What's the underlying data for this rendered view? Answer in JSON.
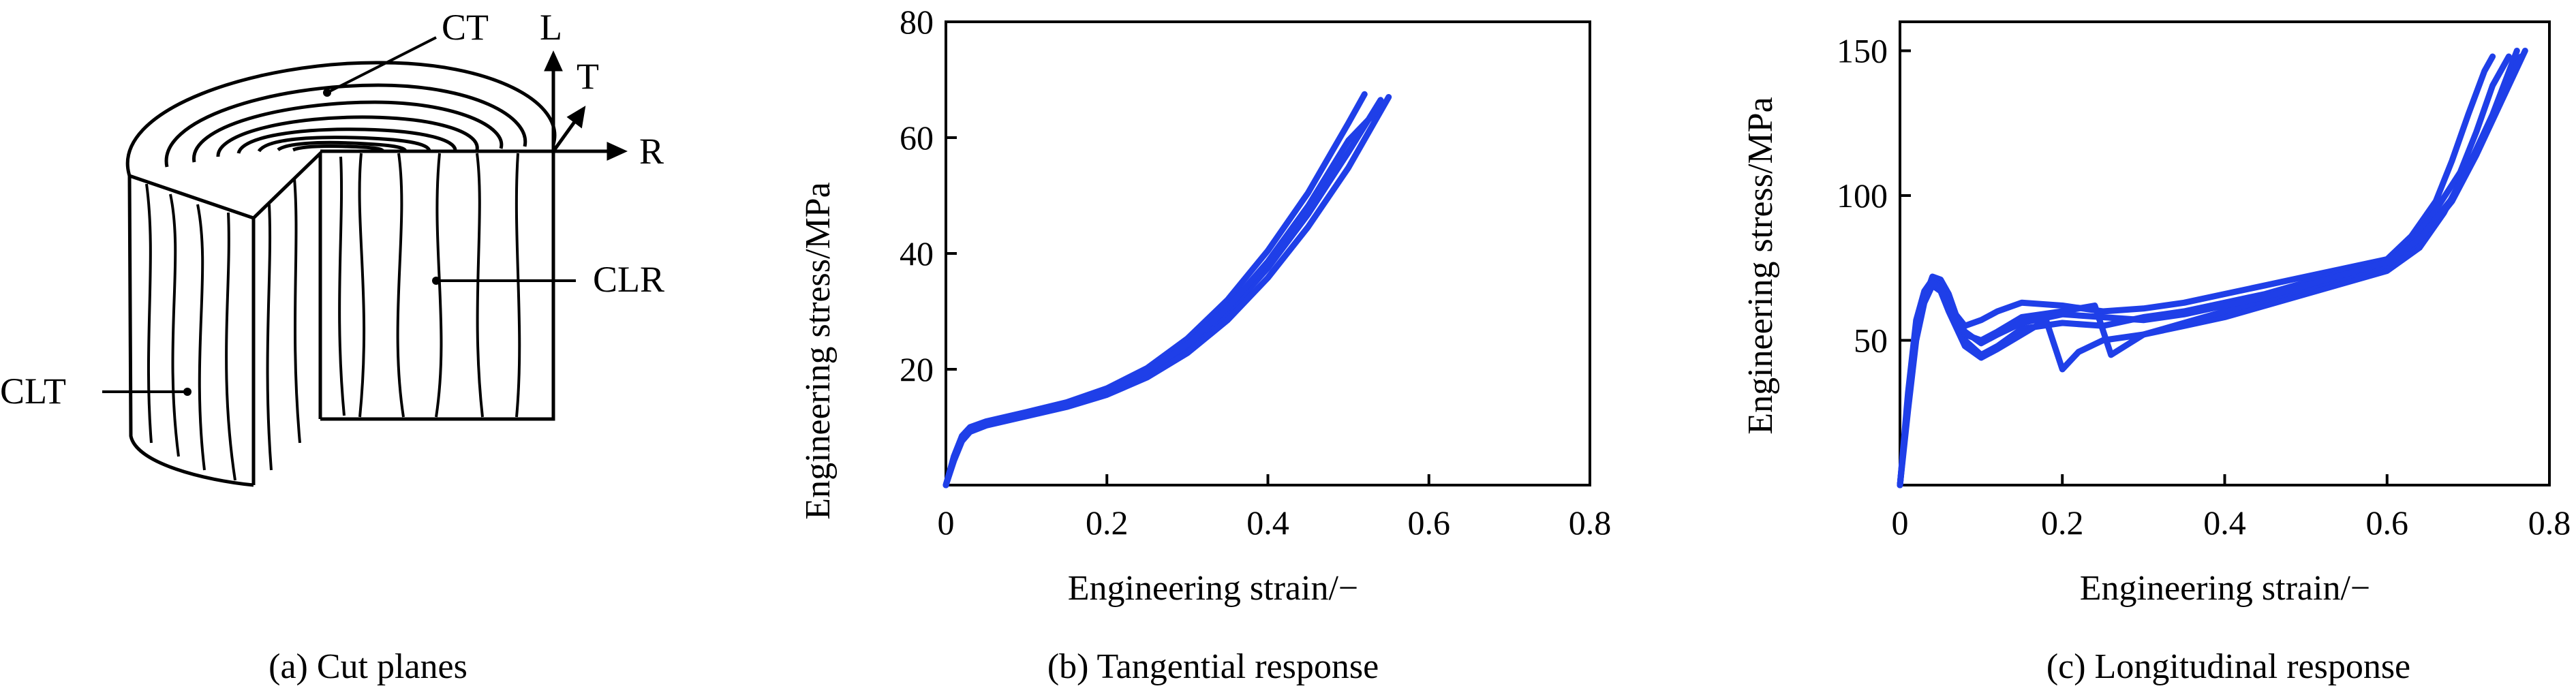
{
  "figure": {
    "panel_a": {
      "caption": "(a) Cut planes",
      "labels": {
        "ct": "CT",
        "clr": "CLR",
        "clt": "CLT",
        "axis_l": "L",
        "axis_t": "T",
        "axis_r": "R"
      }
    },
    "panel_b": {
      "caption": "(b) Tangential response"
    },
    "panel_c": {
      "caption": "(c) Longitudinal response"
    }
  },
  "chart_data": [
    {
      "type": "line",
      "panel": "b",
      "xlabel": "Engineering strain/−",
      "ylabel": "Engineering stress/MPa",
      "xlim": [
        0,
        0.8
      ],
      "ylim": [
        0,
        80
      ],
      "xticks": [
        0,
        0.2,
        0.4,
        0.6,
        0.8
      ],
      "xtick_labels": [
        "0",
        "0.2",
        "0.4",
        "0.6",
        "0.8"
      ],
      "yticks": [
        20,
        40,
        60,
        80
      ],
      "ytick_labels": [
        "20",
        "40",
        "60",
        "80"
      ],
      "color": "#1f3fe8",
      "series": [
        {
          "x": [
            0,
            0.01,
            0.02,
            0.03,
            0.05,
            0.1,
            0.15,
            0.2,
            0.25,
            0.3,
            0.35,
            0.4,
            0.45,
            0.5,
            0.52
          ],
          "y": [
            0,
            5,
            8.5,
            10,
            11,
            12.6,
            14.3,
            16.7,
            20.2,
            25.3,
            32,
            40.5,
            50.5,
            62.5,
            67.5
          ]
        },
        {
          "x": [
            0,
            0.01,
            0.02,
            0.03,
            0.05,
            0.1,
            0.15,
            0.2,
            0.25,
            0.3,
            0.35,
            0.4,
            0.45,
            0.5,
            0.54
          ],
          "y": [
            0,
            4.5,
            8,
            9.5,
            10.6,
            12.2,
            13.9,
            16,
            19.2,
            23.7,
            29.7,
            37.5,
            46.8,
            57.5,
            66.5
          ]
        },
        {
          "x": [
            0,
            0.01,
            0.02,
            0.03,
            0.05,
            0.1,
            0.15,
            0.2,
            0.25,
            0.3,
            0.35,
            0.4,
            0.45,
            0.5,
            0.55
          ],
          "y": [
            0,
            4.2,
            7.6,
            9.2,
            10.3,
            11.9,
            13.5,
            15.6,
            18.6,
            22.8,
            28.5,
            35.8,
            44.6,
            54.8,
            67
          ]
        },
        {
          "x": [
            0,
            0.01,
            0.02,
            0.03,
            0.05,
            0.1,
            0.15,
            0.2,
            0.25,
            0.3,
            0.35,
            0.4,
            0.45,
            0.5,
            0.545
          ],
          "y": [
            0,
            4.8,
            8.2,
            9.7,
            10.8,
            12.4,
            14.1,
            16.3,
            19.6,
            24.3,
            30.6,
            38.6,
            48.2,
            59.5,
            66
          ]
        }
      ]
    },
    {
      "type": "line",
      "panel": "c",
      "xlabel": "Engineering strain/−",
      "ylabel": "Engineering stress/MPa",
      "xlim": [
        0,
        0.8
      ],
      "ylim": [
        0,
        160
      ],
      "xticks": [
        0,
        0.2,
        0.4,
        0.6,
        0.8
      ],
      "xtick_labels": [
        "0",
        "0.2",
        "0.4",
        "0.6",
        "0.8"
      ],
      "yticks": [
        50,
        100,
        150
      ],
      "ytick_labels": [
        "50",
        "100",
        "150"
      ],
      "color": "#1f3fe8",
      "series": [
        {
          "x": [
            0,
            0.01,
            0.02,
            0.03,
            0.04,
            0.05,
            0.06,
            0.08,
            0.1,
            0.12,
            0.15,
            0.2,
            0.25,
            0.3,
            0.35,
            0.4,
            0.45,
            0.5,
            0.55,
            0.6,
            0.63,
            0.66,
            0.68,
            0.7,
            0.72,
            0.73
          ],
          "y": [
            0,
            30,
            55,
            66,
            70,
            68,
            62,
            55,
            57,
            60,
            63,
            62,
            60,
            61,
            63,
            66,
            69,
            72,
            75,
            78,
            86,
            98,
            112,
            128,
            143,
            148
          ]
        },
        {
          "x": [
            0,
            0.01,
            0.02,
            0.03,
            0.04,
            0.05,
            0.06,
            0.08,
            0.1,
            0.12,
            0.15,
            0.2,
            0.25,
            0.3,
            0.35,
            0.4,
            0.45,
            0.5,
            0.55,
            0.6,
            0.63,
            0.66,
            0.69,
            0.71,
            0.73,
            0.75
          ],
          "y": [
            0,
            28,
            52,
            64,
            72,
            71,
            66,
            50,
            45,
            48,
            54,
            56,
            55,
            58,
            60,
            63,
            66,
            70,
            74,
            78,
            84,
            95,
            108,
            122,
            138,
            148
          ]
        },
        {
          "x": [
            0,
            0.01,
            0.02,
            0.03,
            0.04,
            0.05,
            0.06,
            0.08,
            0.1,
            0.12,
            0.15,
            0.18,
            0.2,
            0.22,
            0.25,
            0.3,
            0.35,
            0.4,
            0.45,
            0.5,
            0.55,
            0.6,
            0.64,
            0.67,
            0.7,
            0.73,
            0.76
          ],
          "y": [
            0,
            26,
            50,
            63,
            69,
            67,
            60,
            48,
            44,
            47,
            52,
            57,
            40,
            46,
            50,
            52,
            55,
            58,
            62,
            66,
            70,
            74,
            82,
            94,
            110,
            128,
            150
          ]
        },
        {
          "x": [
            0,
            0.01,
            0.02,
            0.03,
            0.04,
            0.05,
            0.06,
            0.08,
            0.1,
            0.12,
            0.15,
            0.2,
            0.24,
            0.26,
            0.3,
            0.35,
            0.4,
            0.45,
            0.5,
            0.55,
            0.6,
            0.64,
            0.68,
            0.71,
            0.74,
            0.77
          ],
          "y": [
            0,
            32,
            57,
            67,
            71,
            69,
            63,
            52,
            50,
            53,
            58,
            60,
            62,
            45,
            52,
            56,
            60,
            64,
            68,
            72,
            76,
            84,
            98,
            114,
            132,
            150
          ]
        },
        {
          "x": [
            0,
            0.01,
            0.02,
            0.03,
            0.04,
            0.05,
            0.06,
            0.08,
            0.1,
            0.12,
            0.15,
            0.2,
            0.25,
            0.3,
            0.35,
            0.4,
            0.45,
            0.5,
            0.55,
            0.6,
            0.64,
            0.68,
            0.71,
            0.74,
            0.765
          ],
          "y": [
            0,
            30,
            54,
            65,
            70,
            68,
            61,
            53,
            49,
            52,
            56,
            59,
            58,
            57,
            59,
            62,
            65,
            69,
            73,
            77,
            85,
            99,
            115,
            134,
            148
          ]
        }
      ]
    }
  ]
}
